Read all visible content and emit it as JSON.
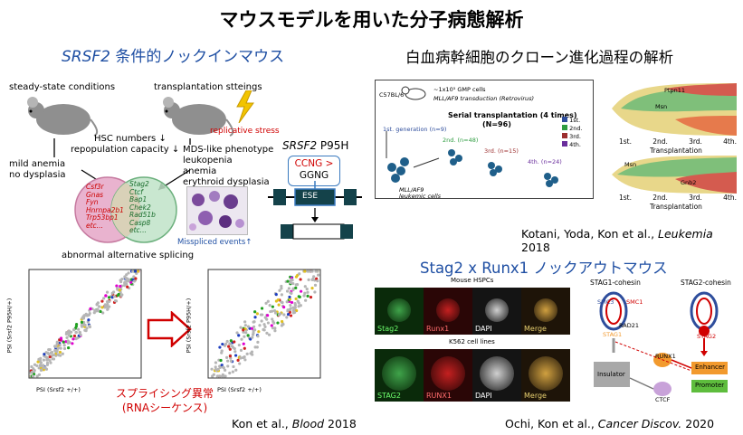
{
  "title": "マウスモデルを用いた分子病態解析",
  "srsf2": {
    "heading_italic": "SRSF2",
    "heading_rest": " 条件的ノックインマウス",
    "steady_state": "steady-state conditions",
    "transplantation": "transplantation stteings",
    "replicative_stress": "replicative stress",
    "hsc_numbers": "HSC numbers ↓",
    "repopulation": "repopulation capacity ↓",
    "mild_anemia": "mild anemia",
    "no_dysplasia": "no dysplasia",
    "mds_like": "MDS-like phenotype",
    "leukopenia": "leukopenia",
    "anemia": "anemia",
    "erythroid": "erythroid dysplasia",
    "venn_left_genes": [
      "Csf3r",
      "Gnas",
      "Fyn",
      "Hnrnpa2b1",
      "Trp53bp1",
      "etc..."
    ],
    "venn_right_genes": [
      "Stag2",
      "Ctcf",
      "Bap1",
      "Chek2",
      "Rad51b",
      "Casp8",
      "etc..."
    ],
    "missspliced": "Misspliced events↑",
    "abnormal_splicing": "abnormal alternative splicing",
    "mutation_gene": "SRSF2",
    "mutation_name": " P95H",
    "codon_change_1": "CCNG >",
    "codon_change_2": "GGNG",
    "ese_label": "ESE",
    "scatter_xlabel_left": "PSI (Srsf2 +/+)",
    "scatter_ylabel_left": "PSI (Srsf2 P95H/+)",
    "scatter_xlabel_right": "PSI (Srsf2 +/+)",
    "scatter_ylabel_right": "PSI (Srsf2 P95H/+)",
    "splicing_abnormal": "スプライシング異常",
    "rna_seq": "(RNAシーケンス)",
    "cite_prefix": "Kon et al., ",
    "cite_journal": "Blood",
    "cite_year": " 2018"
  },
  "clonal": {
    "heading": "白血病幹細胞のクローン進化過程の解析",
    "strain": "C57BL/6",
    "gmp": "~1x10⁵ GMP cells",
    "transduction": "MLL/AF9 transduction (Retrovirus)",
    "serial": "Serial transplantation (4 times)",
    "n96": "(N=96)",
    "gen1": "1st. generation (n=9)",
    "gen2": "2nd. (n=48)",
    "gen3": "3rd. (n=15)",
    "gen4": "4th. (n=24)",
    "leukemic": "MLL/AF9",
    "leukemic2": "leukemic cells",
    "legend": [
      "1st.",
      "2nd.",
      "3rd.",
      "4th."
    ],
    "fish_label_1": "Ptpn11",
    "fish_label_2": "Msn",
    "fish_label_3": "Msn",
    "fish_label_4": "Gnb2",
    "x_ticks": [
      "1st.",
      "2nd.",
      "3rd.",
      "4th."
    ],
    "x_title": "Transplantation",
    "cite": "Kotani, Yoda, Kon et al., ",
    "cite_journal": "Leukemia",
    "cite_year": " 2018"
  },
  "stag2": {
    "heading": "Stag2 x Runx1 ノックアウトマウス",
    "mouse_hspc": "Mouse HSPCs",
    "k562": "K562 cell lines",
    "row1": [
      "Stag2",
      "Runx1",
      "DAPI",
      "Merge"
    ],
    "row2": [
      "STAG2",
      "RUNX1",
      "DAPI",
      "Merge"
    ],
    "stag1_cohesin": "STAG1-cohesin",
    "stag2_cohesin": "STAG2-cohesin",
    "smc3": "SMC3",
    "smc1": "SMC1",
    "rad21": "RAD21",
    "stag1": "STAG1",
    "stag2": "STAG2",
    "runx1": "RUNX1",
    "insulator": "Insulator",
    "enhancer": "Enhancer",
    "promoter": "Promoter",
    "ctcf": "CTCF",
    "cite": "Ochi, Kon et al., ",
    "cite_journal": "Cancer Discov.",
    "cite_year": " 2020"
  },
  "colors": {
    "heading_blue": "#1f4fa3",
    "red_text": "#d00000",
    "legend": [
      "#2e4d9c",
      "#2e9c40",
      "#9c2e2e",
      "#6a2e9c"
    ]
  }
}
